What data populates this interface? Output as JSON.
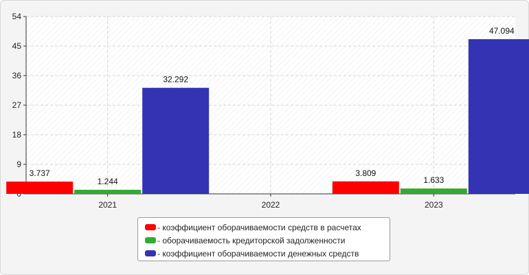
{
  "chart_data": {
    "type": "bar",
    "categories": [
      "2021",
      "2022",
      "2023"
    ],
    "series": [
      {
        "name": "- коэффициент оборачиваемости средств в расчетах",
        "color": "#ff0000",
        "values": [
          3.737,
          null,
          3.809
        ],
        "labels": [
          "3.737",
          "",
          "3.809"
        ]
      },
      {
        "name": "- оборачиваемость кредиторской задолженности",
        "color": "#33aa33",
        "values": [
          1.244,
          null,
          1.633
        ],
        "labels": [
          "1.244",
          "",
          "1.633"
        ]
      },
      {
        "name": "- коэффициент оборачиваемости денежных средств",
        "color": "#3333b3",
        "values": [
          32.292,
          null,
          47.094
        ],
        "labels": [
          "32.292",
          "",
          "47.094"
        ]
      }
    ],
    "y_ticks": [
      0,
      9,
      18,
      27,
      36,
      45,
      54
    ],
    "ylim": [
      0,
      54
    ],
    "grid": true,
    "legend_position": "bottom-center"
  }
}
